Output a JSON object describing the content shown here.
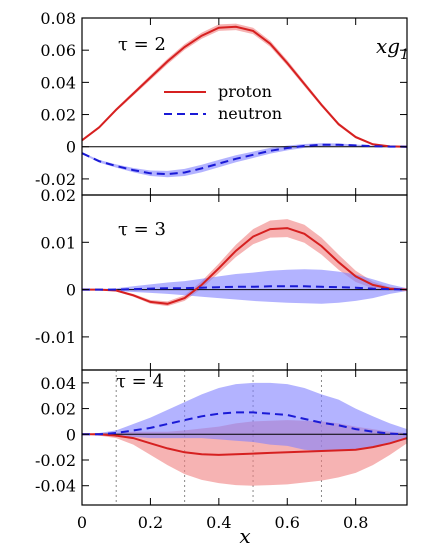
{
  "chart_data": [
    {
      "type": "line",
      "panel_label": "τ = 2",
      "corner_label": "xg1",
      "xlim": [
        0,
        0.95
      ],
      "ylim": [
        -0.03,
        0.08
      ],
      "yticks": [
        {
          "v": 0.08,
          "label": "0.08"
        },
        {
          "v": 0.06,
          "label": "0.06"
        },
        {
          "v": 0.04,
          "label": "0.04"
        },
        {
          "v": 0.02,
          "label": "0.02"
        },
        {
          "v": 0,
          "label": "0"
        },
        {
          "v": -0.02,
          "label": "-0.02"
        }
      ],
      "legend": {
        "placement": "top-center",
        "proton_label": "proton",
        "neutron_label": "neutron"
      },
      "series": [
        {
          "name": "proton",
          "color": "#d62020",
          "band_color": "#f08080",
          "style": "solid",
          "x": [
            0.0,
            0.05,
            0.1,
            0.15,
            0.2,
            0.25,
            0.3,
            0.35,
            0.4,
            0.45,
            0.5,
            0.55,
            0.6,
            0.65,
            0.7,
            0.75,
            0.8,
            0.85,
            0.9,
            0.95
          ],
          "y": [
            0.004,
            0.012,
            0.023,
            0.033,
            0.043,
            0.053,
            0.062,
            0.069,
            0.074,
            0.0745,
            0.072,
            0.064,
            0.052,
            0.039,
            0.026,
            0.014,
            0.006,
            0.0015,
            0.0002,
            0.0
          ],
          "err": [
            0.0006,
            0.0008,
            0.001,
            0.0012,
            0.0015,
            0.0017,
            0.0018,
            0.0019,
            0.002,
            0.002,
            0.002,
            0.0019,
            0.0017,
            0.0015,
            0.0012,
            0.001,
            0.0008,
            0.0005,
            0.0003,
            0.0002
          ]
        },
        {
          "name": "neutron",
          "color": "#1a1ad6",
          "band_color": "#8080ff",
          "style": "dashed",
          "x": [
            0.0,
            0.05,
            0.1,
            0.15,
            0.2,
            0.25,
            0.3,
            0.35,
            0.4,
            0.45,
            0.5,
            0.55,
            0.6,
            0.65,
            0.7,
            0.75,
            0.8,
            0.85,
            0.9,
            0.95
          ],
          "y": [
            -0.004,
            -0.009,
            -0.012,
            -0.0145,
            -0.0165,
            -0.017,
            -0.016,
            -0.0135,
            -0.0105,
            -0.0075,
            -0.005,
            -0.0025,
            -0.0008,
            0.0005,
            0.0012,
            0.0012,
            0.0008,
            0.0003,
            0.0001,
            0.0
          ],
          "err": [
            0.0005,
            0.0008,
            0.001,
            0.0013,
            0.0017,
            0.002,
            0.0022,
            0.0023,
            0.0023,
            0.0022,
            0.002,
            0.0018,
            0.0015,
            0.0012,
            0.001,
            0.0008,
            0.0006,
            0.0004,
            0.0002,
            0.0001
          ]
        }
      ]
    },
    {
      "type": "line",
      "panel_label": "τ = 3",
      "xlim": [
        0,
        0.95
      ],
      "ylim": [
        -0.017,
        0.02
      ],
      "yticks": [
        {
          "v": 0.02,
          "label": "0.02"
        },
        {
          "v": 0.01,
          "label": "0.01"
        },
        {
          "v": 0,
          "label": "0"
        },
        {
          "v": -0.01,
          "label": "-0.01"
        }
      ],
      "series": [
        {
          "name": "proton",
          "color": "#d62020",
          "band_color": "#f08080",
          "style": "solid",
          "x": [
            0.0,
            0.05,
            0.1,
            0.15,
            0.2,
            0.25,
            0.3,
            0.35,
            0.4,
            0.45,
            0.5,
            0.55,
            0.6,
            0.65,
            0.7,
            0.75,
            0.8,
            0.85,
            0.9,
            0.95
          ],
          "y": [
            0.0,
            0.0,
            -0.0002,
            -0.0012,
            -0.0026,
            -0.003,
            -0.0018,
            0.001,
            0.0045,
            0.0082,
            0.0112,
            0.0128,
            0.013,
            0.0118,
            0.0092,
            0.0058,
            0.0028,
            0.001,
            0.0002,
            0.0
          ],
          "err": [
            0.0,
            0.0001,
            0.0002,
            0.0003,
            0.0004,
            0.0005,
            0.0006,
            0.0008,
            0.001,
            0.0013,
            0.0016,
            0.0018,
            0.0019,
            0.0019,
            0.0018,
            0.0016,
            0.0012,
            0.0007,
            0.0003,
            0.0001
          ]
        },
        {
          "name": "neutron",
          "color": "#1a1ad6",
          "band_color": "#8080ff",
          "style": "dashed",
          "x": [
            0.0,
            0.05,
            0.1,
            0.15,
            0.2,
            0.25,
            0.3,
            0.35,
            0.4,
            0.45,
            0.5,
            0.55,
            0.6,
            0.65,
            0.7,
            0.75,
            0.8,
            0.85,
            0.9,
            0.95
          ],
          "y": [
            0.0,
            0.0,
            0.0,
            0.0001,
            0.0002,
            0.0003,
            0.0003,
            0.0004,
            0.0005,
            0.0006,
            0.0006,
            0.0007,
            0.0007,
            0.0007,
            0.0006,
            0.0005,
            0.0004,
            0.0002,
            0.0001,
            0.0
          ],
          "err": [
            0.0,
            0.0001,
            0.0003,
            0.0006,
            0.0009,
            0.0012,
            0.0015,
            0.0019,
            0.0023,
            0.0027,
            0.003,
            0.0033,
            0.0035,
            0.0036,
            0.0036,
            0.0033,
            0.0028,
            0.002,
            0.001,
            0.0003
          ]
        }
      ]
    },
    {
      "type": "line",
      "panel_label": "τ = 4",
      "xlim": [
        0,
        0.95
      ],
      "ylim": [
        -0.055,
        0.05
      ],
      "xlabel": "x",
      "xticks": [
        {
          "v": 0,
          "label": "0"
        },
        {
          "v": 0.2,
          "label": "0.2"
        },
        {
          "v": 0.4,
          "label": "0.4"
        },
        {
          "v": 0.6,
          "label": "0.6"
        },
        {
          "v": 0.8,
          "label": "0.8"
        }
      ],
      "yticks": [
        {
          "v": 0.04,
          "label": "0.04"
        },
        {
          "v": 0.02,
          "label": "0.02"
        },
        {
          "v": 0,
          "label": "0"
        },
        {
          "v": -0.02,
          "label": "-0.02"
        },
        {
          "v": -0.04,
          "label": "-0.04"
        }
      ],
      "vlines": [
        0.1,
        0.3,
        0.5,
        0.7
      ],
      "series": [
        {
          "name": "proton",
          "color": "#d62020",
          "band_color": "#f08080",
          "style": "solid",
          "x": [
            0.0,
            0.05,
            0.1,
            0.15,
            0.2,
            0.25,
            0.3,
            0.35,
            0.4,
            0.45,
            0.5,
            0.55,
            0.6,
            0.65,
            0.7,
            0.75,
            0.8,
            0.85,
            0.9,
            0.95
          ],
          "y": [
            0.0,
            0.0,
            -0.001,
            -0.003,
            -0.007,
            -0.011,
            -0.014,
            -0.0155,
            -0.016,
            -0.0155,
            -0.015,
            -0.0145,
            -0.014,
            -0.0135,
            -0.013,
            -0.0125,
            -0.012,
            -0.01,
            -0.007,
            -0.003
          ],
          "err": [
            0.0,
            0.001,
            0.002,
            0.005,
            0.009,
            0.013,
            0.017,
            0.02,
            0.022,
            0.024,
            0.025,
            0.025,
            0.025,
            0.024,
            0.023,
            0.021,
            0.018,
            0.014,
            0.009,
            0.004
          ]
        },
        {
          "name": "neutron",
          "color": "#1a1ad6",
          "band_color": "#8080ff",
          "style": "dashed",
          "x": [
            0.0,
            0.05,
            0.1,
            0.15,
            0.2,
            0.25,
            0.3,
            0.35,
            0.4,
            0.45,
            0.5,
            0.55,
            0.6,
            0.65,
            0.7,
            0.75,
            0.8,
            0.85,
            0.9,
            0.95
          ],
          "y": [
            0.0,
            0.0,
            0.001,
            0.003,
            0.005,
            0.008,
            0.011,
            0.014,
            0.016,
            0.017,
            0.017,
            0.016,
            0.015,
            0.012,
            0.009,
            0.007,
            0.004,
            0.002,
            0.0005,
            0.0
          ],
          "err": [
            0.0,
            0.001,
            0.002,
            0.005,
            0.008,
            0.011,
            0.014,
            0.017,
            0.02,
            0.022,
            0.023,
            0.024,
            0.024,
            0.024,
            0.022,
            0.02,
            0.016,
            0.012,
            0.008,
            0.004
          ]
        }
      ]
    }
  ]
}
